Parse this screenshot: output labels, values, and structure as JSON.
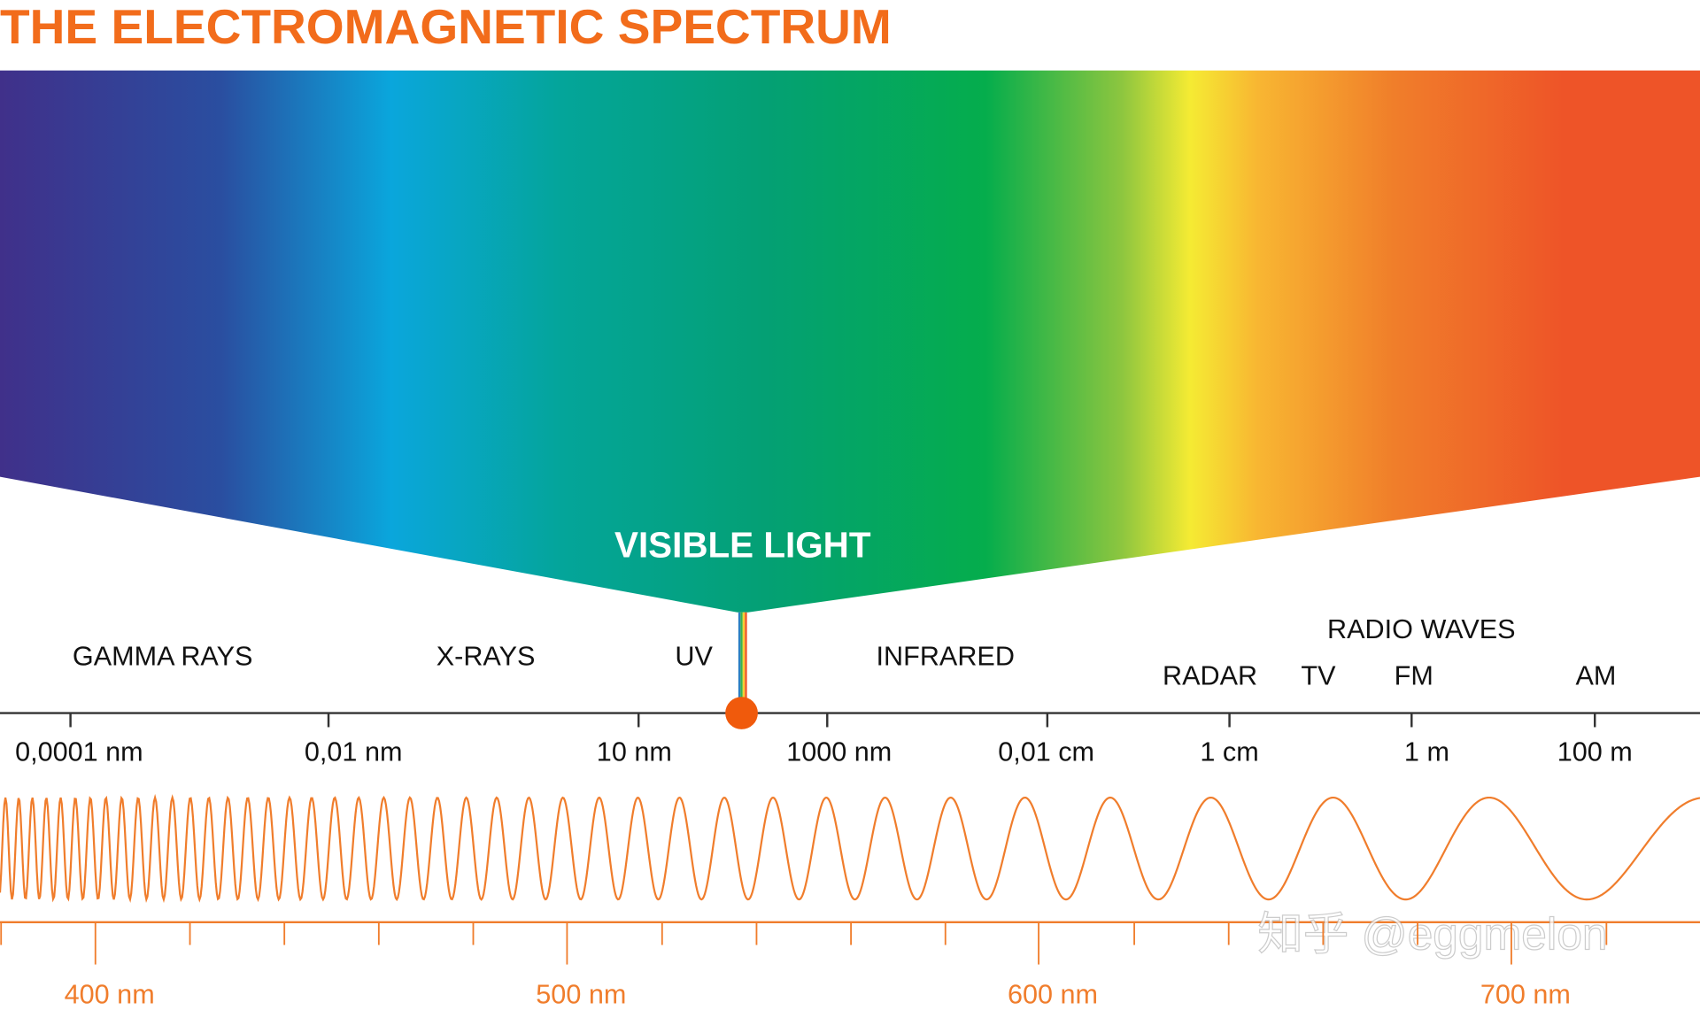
{
  "title": "THE ELECTROMAGNETIC SPECTRUM",
  "visible_light": "VISIBLE LIGHT",
  "regions": {
    "gamma": "GAMMA RAYS",
    "xrays": "X-RAYS",
    "uv": "UV",
    "infrared": "INFRARED",
    "radio": "RADIO WAVES",
    "radar": "RADAR",
    "tv": "TV",
    "fm": "FM",
    "am": "AM"
  },
  "scale_labels": [
    "0,0001 nm",
    "0,01 nm",
    "10 nm",
    "1000 nm",
    "0,01 cm",
    "1 cm",
    "1 m",
    "100 m"
  ],
  "visible_labels": [
    "400 nm",
    "500 nm",
    "600 nm",
    "700 nm"
  ],
  "watermark": "知乎 @eggmelon"
}
